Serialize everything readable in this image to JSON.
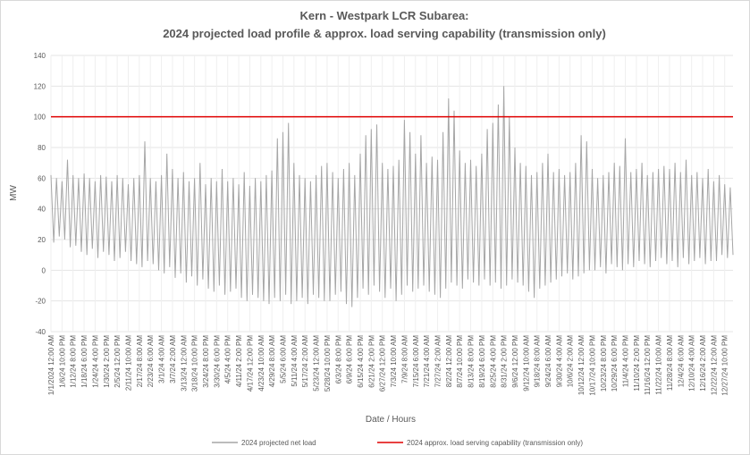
{
  "chart_data": {
    "type": "line",
    "title": "Kern - Westpark LCR Subarea:",
    "subtitle": "2024 projected load profile & approx. load serving capability (transmission only)",
    "x_label": "Date / Hours",
    "y_label": "MW",
    "categories": [
      "1/1/2024 12:00 AM",
      null,
      null,
      null,
      "1/6/24 10:00 PM",
      null,
      null,
      null,
      "1/12/24 8:00 PM",
      null,
      null,
      null,
      "1/18/24 6:00 PM",
      null,
      null,
      null,
      "1/24/24 4:00 PM",
      null,
      null,
      null,
      "1/30/24 2:00 PM",
      null,
      null,
      null,
      "2/5/24 12:00 PM",
      null,
      null,
      null,
      "2/11/24 10:00 AM",
      null,
      null,
      null,
      "2/17/24 8:00 AM",
      null,
      null,
      null,
      "2/23/24 6:00 AM",
      null,
      null,
      null,
      "3/1/24 4:00 AM",
      null,
      null,
      null,
      "3/7/24 2:00 AM",
      null,
      null,
      null,
      "3/13/24 12:00 AM",
      null,
      null,
      null,
      "3/18/24 10:00 PM",
      null,
      null,
      null,
      "3/24/24 8:00 PM",
      null,
      null,
      null,
      "3/30/24 6:00 PM",
      null,
      null,
      null,
      "4/5/24 4:00 PM",
      null,
      null,
      null,
      "4/11/24 2:00 PM",
      null,
      null,
      null,
      "4/17/24 12:00 PM",
      null,
      null,
      null,
      "4/23/24 10:00 AM",
      null,
      null,
      null,
      "4/29/24 8:00 AM",
      null,
      null,
      null,
      "5/5/24 6:00 AM",
      null,
      null,
      null,
      "5/11/24 4:00 AM",
      null,
      null,
      null,
      "5/17/24 2:00 AM",
      null,
      null,
      null,
      "5/23/24 12:00 AM",
      null,
      null,
      null,
      "5/28/24 10:00 PM",
      null,
      null,
      null,
      "6/3/24 8:00 PM",
      null,
      null,
      null,
      "6/9/24 6:00 PM",
      null,
      null,
      null,
      "6/15/24 4:00 PM",
      null,
      null,
      null,
      "6/21/24 2:00 PM",
      null,
      null,
      null,
      "6/27/24 12:00 PM",
      null,
      null,
      null,
      "7/3/24 10:00 AM",
      null,
      null,
      null,
      "7/9/24 8:00 AM",
      null,
      null,
      null,
      "7/15/24 6:00 AM",
      null,
      null,
      null,
      "7/21/24 4:00 AM",
      null,
      null,
      null,
      "7/27/24 2:00 AM",
      null,
      null,
      null,
      "8/2/24 12:00 AM",
      null,
      null,
      null,
      "8/7/24 10:00 PM",
      null,
      null,
      null,
      "8/13/24 8:00 PM",
      null,
      null,
      null,
      "8/19/24 6:00 PM",
      null,
      null,
      null,
      "8/25/24 4:00 PM",
      null,
      null,
      null,
      "8/31/24 2:00 PM",
      null,
      null,
      null,
      "9/6/24 12:00 PM",
      null,
      null,
      null,
      "9/12/24 10:00 AM",
      null,
      null,
      null,
      "9/18/24 8:00 AM",
      null,
      null,
      null,
      "9/24/24 6:00 AM",
      null,
      null,
      null,
      "9/30/24 4:00 AM",
      null,
      null,
      null,
      "10/6/24 2:00 AM",
      null,
      null,
      null,
      "10/12/24 12:00 AM",
      null,
      null,
      null,
      "10/17/24 10:00 PM",
      null,
      null,
      null,
      "10/23/24 8:00 PM",
      null,
      null,
      null,
      "10/29/24 6:00 PM",
      null,
      null,
      null,
      "11/4/24 4:00 PM",
      null,
      null,
      null,
      "11/10/24 2:00 PM",
      null,
      null,
      null,
      "11/16/24 12:00 PM",
      null,
      null,
      null,
      "11/22/24 10:00 AM",
      null,
      null,
      null,
      "11/28/24 8:00 AM",
      null,
      null,
      null,
      "12/4/24 6:00 AM",
      null,
      null,
      null,
      "12/10/24 4:00 AM",
      null,
      null,
      null,
      "12/16/24 2:00 AM",
      null,
      null,
      null,
      "12/22/24 12:00 AM",
      null,
      null,
      null,
      "12/27/24 10:00 PM",
      null,
      null,
      null
    ],
    "series": [
      {
        "name": "2024 projected net load",
        "color": "#a6a6a6",
        "values": [
          62,
          18,
          60,
          22,
          58,
          20,
          72,
          15,
          62,
          16,
          60,
          12,
          63,
          10,
          60,
          14,
          58,
          8,
          62,
          12,
          61,
          10,
          58,
          6,
          62,
          8,
          60,
          12,
          56,
          6,
          60,
          4,
          62,
          2,
          84,
          6,
          60,
          4,
          58,
          0,
          62,
          -2,
          76,
          2,
          66,
          -5,
          60,
          -2,
          64,
          -8,
          58,
          -4,
          60,
          -10,
          70,
          -6,
          56,
          -12,
          60,
          -14,
          58,
          -10,
          66,
          -16,
          58,
          -14,
          60,
          -12,
          56,
          -18,
          64,
          -20,
          55,
          -16,
          60,
          -18,
          58,
          -20,
          62,
          -22,
          65,
          -18,
          86,
          -20,
          90,
          -16,
          96,
          -22,
          70,
          -20,
          62,
          -18,
          60,
          -22,
          58,
          -16,
          62,
          -18,
          68,
          -20,
          70,
          -20,
          64,
          -16,
          60,
          -14,
          66,
          -22,
          70,
          -24,
          62,
          -18,
          76,
          -12,
          88,
          -16,
          92,
          -10,
          95,
          -14,
          70,
          -18,
          66,
          -12,
          68,
          -20,
          72,
          -16,
          98,
          -10,
          90,
          -14,
          76,
          -12,
          88,
          -10,
          70,
          -14,
          74,
          -16,
          72,
          -18,
          90,
          -12,
          112,
          -8,
          104,
          -10,
          78,
          -12,
          70,
          -6,
          72,
          -8,
          68,
          -10,
          76,
          -6,
          92,
          -10,
          96,
          -8,
          108,
          -12,
          120,
          -10,
          100,
          -6,
          80,
          -8,
          70,
          -10,
          68,
          -14,
          62,
          -18,
          64,
          -12,
          70,
          -10,
          76,
          -8,
          64,
          -6,
          66,
          -4,
          62,
          -2,
          64,
          -6,
          70,
          -4,
          88,
          -2,
          84,
          0,
          66,
          0,
          60,
          2,
          62,
          -2,
          64,
          4,
          70,
          2,
          68,
          0,
          86,
          4,
          64,
          2,
          66,
          6,
          70,
          4,
          62,
          2,
          64,
          6,
          66,
          8,
          68,
          4,
          66,
          6,
          70,
          2,
          64,
          8,
          72,
          4,
          62,
          6,
          64,
          8,
          60,
          4,
          66,
          6,
          58,
          6,
          62,
          10,
          56,
          8,
          54,
          10
        ]
      }
    ],
    "reference_line": {
      "name": "2024 approx. load serving  capability (transmission only)",
      "color": "#e00000",
      "value": 100
    },
    "ylim": [
      -40,
      140
    ],
    "yticks": [
      -40,
      -20,
      0,
      20,
      40,
      60,
      80,
      100,
      120,
      140
    ],
    "grid": true,
    "legend": "bottom"
  }
}
